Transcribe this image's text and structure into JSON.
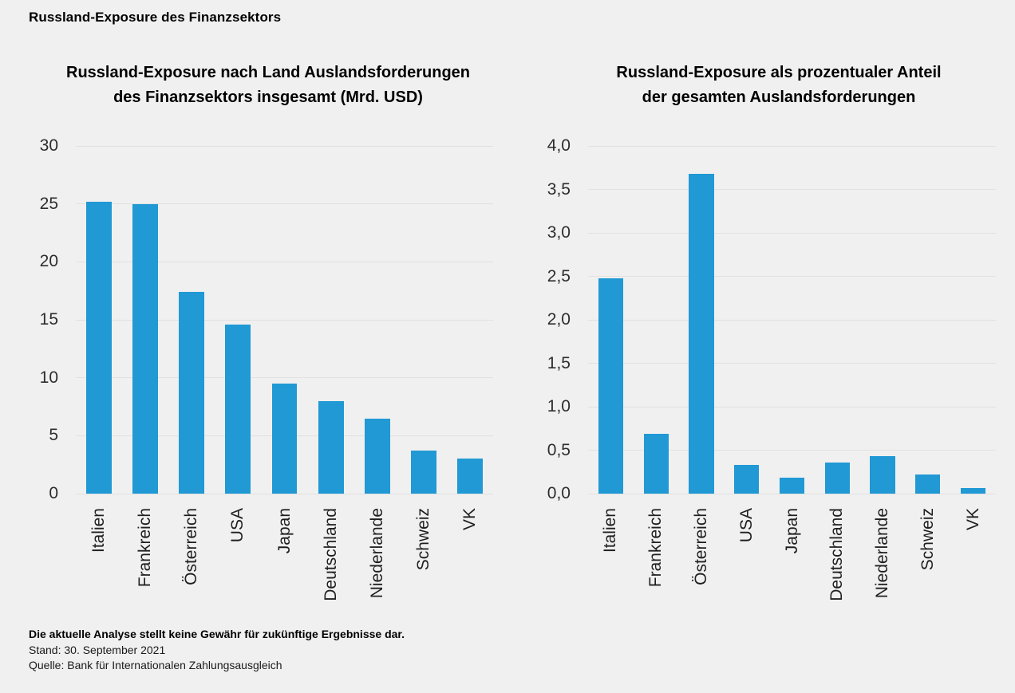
{
  "page": {
    "title": "Russland-Exposure des Finanzsektors",
    "background_color": "#f0f0f0"
  },
  "footer": {
    "disclaimer": "Die aktuelle Analyse stellt keine Gewähr für zukünftige Ergebnisse dar.",
    "as_of": "Stand: 30. September 2021",
    "source": "Quelle: Bank für Internationalen Zahlungsausgleich"
  },
  "chart_data": [
    {
      "type": "bar",
      "title": "Russland-Exposure nach Land Auslandsforderungen des Finanzsektors insgesamt (Mrd. USD)",
      "title_lines": [
        "Russland-Exposure nach Land Auslandsforderungen",
        "des Finanzsektors insgesamt (Mrd. USD)"
      ],
      "categories": [
        "Italien",
        "Frankreich",
        "Österreich",
        "USA",
        "Japan",
        "Deutschland",
        "Niederlande",
        "Schweiz",
        "VK"
      ],
      "values": [
        25.2,
        25.0,
        17.4,
        14.6,
        9.5,
        8.0,
        6.5,
        3.7,
        3.0
      ],
      "xlabel": "",
      "ylabel": "",
      "ylim": [
        0,
        30
      ],
      "ytick_step": 5,
      "ytick_labels": [
        "0",
        "5",
        "10",
        "15",
        "20",
        "25",
        "30"
      ],
      "grid": true,
      "legend": "none",
      "bar_color": "#2099d5",
      "grid_color": "#e1e1e1"
    },
    {
      "type": "bar",
      "title": "Russland-Exposure als prozentualer Anteil der gesamten Auslandsforderungen",
      "title_lines": [
        "Russland-Exposure als prozentualer Anteil",
        "der gesamten Auslandsforderungen"
      ],
      "categories": [
        "Italien",
        "Frankreich",
        "Österreich",
        "USA",
        "Japan",
        "Deutschland",
        "Niederlande",
        "Schweiz",
        "VK"
      ],
      "values": [
        2.48,
        0.69,
        3.68,
        0.33,
        0.18,
        0.36,
        0.43,
        0.22,
        0.06
      ],
      "xlabel": "",
      "ylabel": "",
      "ylim": [
        0,
        4
      ],
      "ytick_step": 0.5,
      "ytick_labels": [
        "0,0",
        "0,5",
        "1,0",
        "1,5",
        "2,0",
        "2,5",
        "3,0",
        "3,5",
        "4,0"
      ],
      "grid": true,
      "legend": "none",
      "bar_color": "#2099d5",
      "grid_color": "#e1e1e1"
    }
  ]
}
